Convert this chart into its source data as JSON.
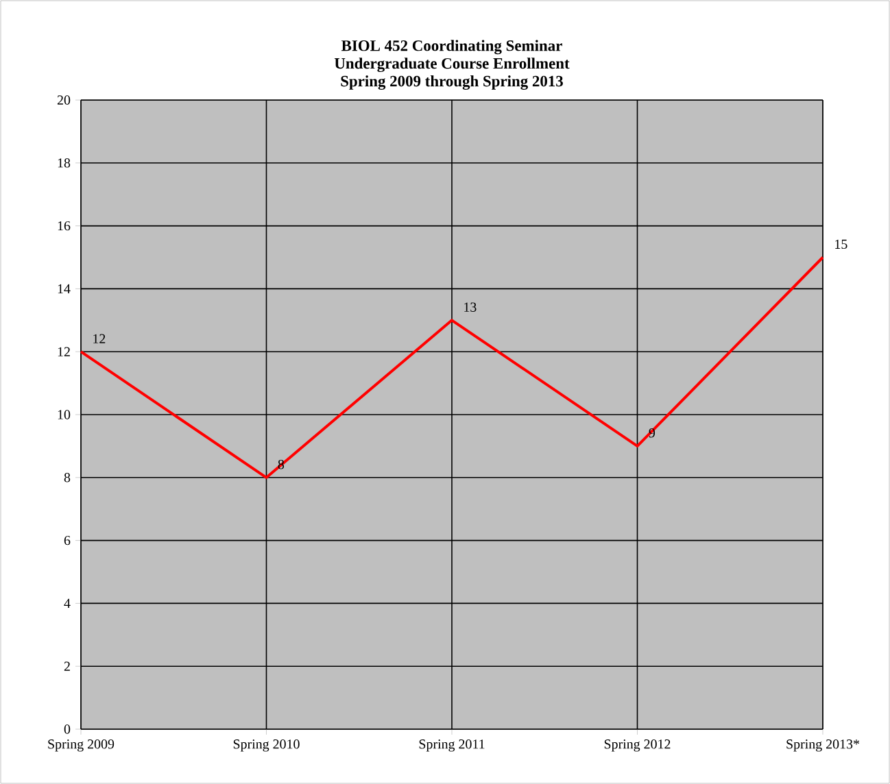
{
  "chart_data": {
    "type": "line",
    "title": "BIOL 452 Coordinating Seminar\nUndergraduate Course Enrollment\nSpring 2009 through Spring 2013",
    "categories": [
      "Spring 2009",
      "Spring 2010",
      "Spring 2011",
      "Spring 2012",
      "Spring 2013*"
    ],
    "series": [
      {
        "color": "#ff0000",
        "values": [
          12,
          8,
          13,
          9,
          15
        ]
      }
    ],
    "ylim": [
      0,
      20
    ],
    "yticks": [
      0,
      2,
      4,
      6,
      8,
      10,
      12,
      14,
      16,
      18,
      20
    ],
    "grid": true,
    "data_labels": true,
    "marker": "none",
    "line_style": "solid"
  }
}
